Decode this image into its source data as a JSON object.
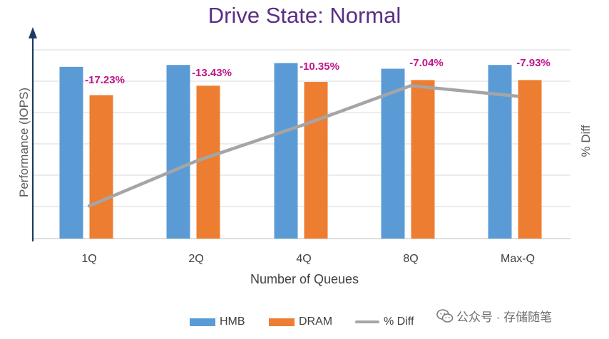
{
  "chart_data": {
    "type": "bar",
    "title": "Drive State: Normal",
    "xlabel": "Number of Queues",
    "ylabel": "Performance (IOPS)",
    "y2label": "% Diff",
    "categories": [
      "1Q",
      "2Q",
      "4Q",
      "8Q",
      "Max-Q"
    ],
    "series": [
      {
        "name": "HMB",
        "values": [
          0.91,
          0.92,
          0.93,
          0.9,
          0.92
        ]
      },
      {
        "name": "DRAM",
        "values": [
          0.76,
          0.81,
          0.83,
          0.84,
          0.84
        ]
      }
    ],
    "line_series": {
      "name": "% Diff",
      "values": [
        -17.23,
        -13.43,
        -10.35,
        -7.04,
        -7.93
      ]
    },
    "data_labels": [
      "-17.23%",
      "-13.43%",
      "-10.35%",
      "-7.04%",
      "-7.93%"
    ],
    "ylim": [
      0,
      1.0
    ],
    "y2lim": [
      -20,
      -4
    ],
    "grid": true,
    "legend_position": "bottom"
  },
  "legend": {
    "hmb": "HMB",
    "dram": "DRAM",
    "diff": "% Diff"
  },
  "watermark": "公众号 · 存储随笔",
  "colors": {
    "hmb": "#5b9bd5",
    "dram": "#ed7d31",
    "line": "#a5a5a5",
    "label": "#c0158a",
    "title": "#5b2d86",
    "grid": "#d9d9d9",
    "axis": "#1f3864"
  }
}
